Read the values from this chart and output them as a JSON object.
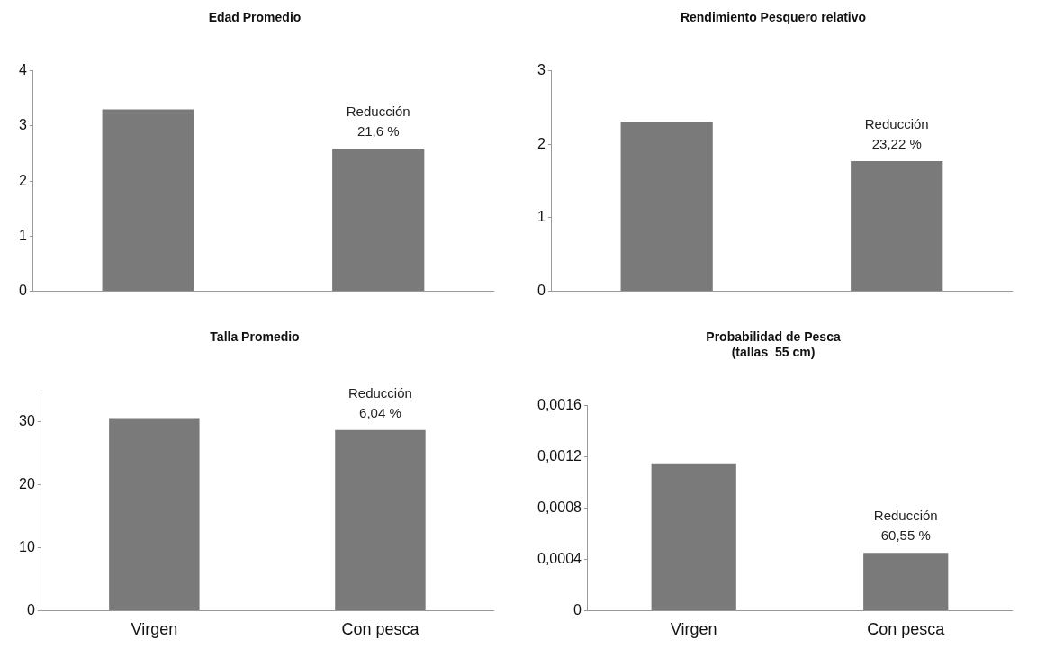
{
  "chart_data": [
    {
      "type": "bar",
      "title": "Edad Promedio",
      "categories": [
        null,
        null
      ],
      "values": [
        3.3,
        2.59
      ],
      "color": "#7a7a7a",
      "ylim": [
        0,
        4
      ],
      "yticks": [
        0,
        1,
        2,
        3,
        4
      ],
      "grid": false,
      "legend": false,
      "annotations": [
        "Reducción\n21,6 %"
      ]
    },
    {
      "type": "bar",
      "title": "Rendimiento Pesquero relativo",
      "categories": [
        null,
        null
      ],
      "values": [
        2.31,
        1.77
      ],
      "color": "#7a7a7a",
      "ylim": [
        0,
        3
      ],
      "yticks": [
        0,
        1,
        2,
        3
      ],
      "grid": false,
      "legend": false,
      "annotations": [
        "Reducción\n23,22 %"
      ]
    },
    {
      "type": "bar",
      "title": "Talla Promedio",
      "categories": [
        "Virgen",
        "Con pesca"
      ],
      "values": [
        30.6,
        28.7
      ],
      "color": "#7a7a7a",
      "ylim": [
        0,
        35
      ],
      "yticks": [
        0,
        10,
        20,
        30
      ],
      "grid": false,
      "legend": false,
      "annotations": [
        "Reducción\n6,04 %"
      ]
    },
    {
      "type": "bar",
      "title": "Probabilidad de Pesca\n(tallas  55 cm)",
      "categories": [
        "Virgen",
        "Con pesca"
      ],
      "values": [
        0.00115,
        0.00045
      ],
      "color": "#7a7a7a",
      "ylim": [
        0,
        0.0016
      ],
      "yticks": [
        {
          "value": 0,
          "label": "0"
        },
        {
          "value": 0.0004,
          "label": "0,0004"
        },
        {
          "value": 0.0008,
          "label": "0,0008"
        },
        {
          "value": 0.0012,
          "label": "0,0012"
        },
        {
          "value": 0.0016,
          "label": "0,0016"
        }
      ],
      "grid": false,
      "legend": false,
      "annotations": [
        "Reducción\n60,55 %"
      ]
    }
  ]
}
